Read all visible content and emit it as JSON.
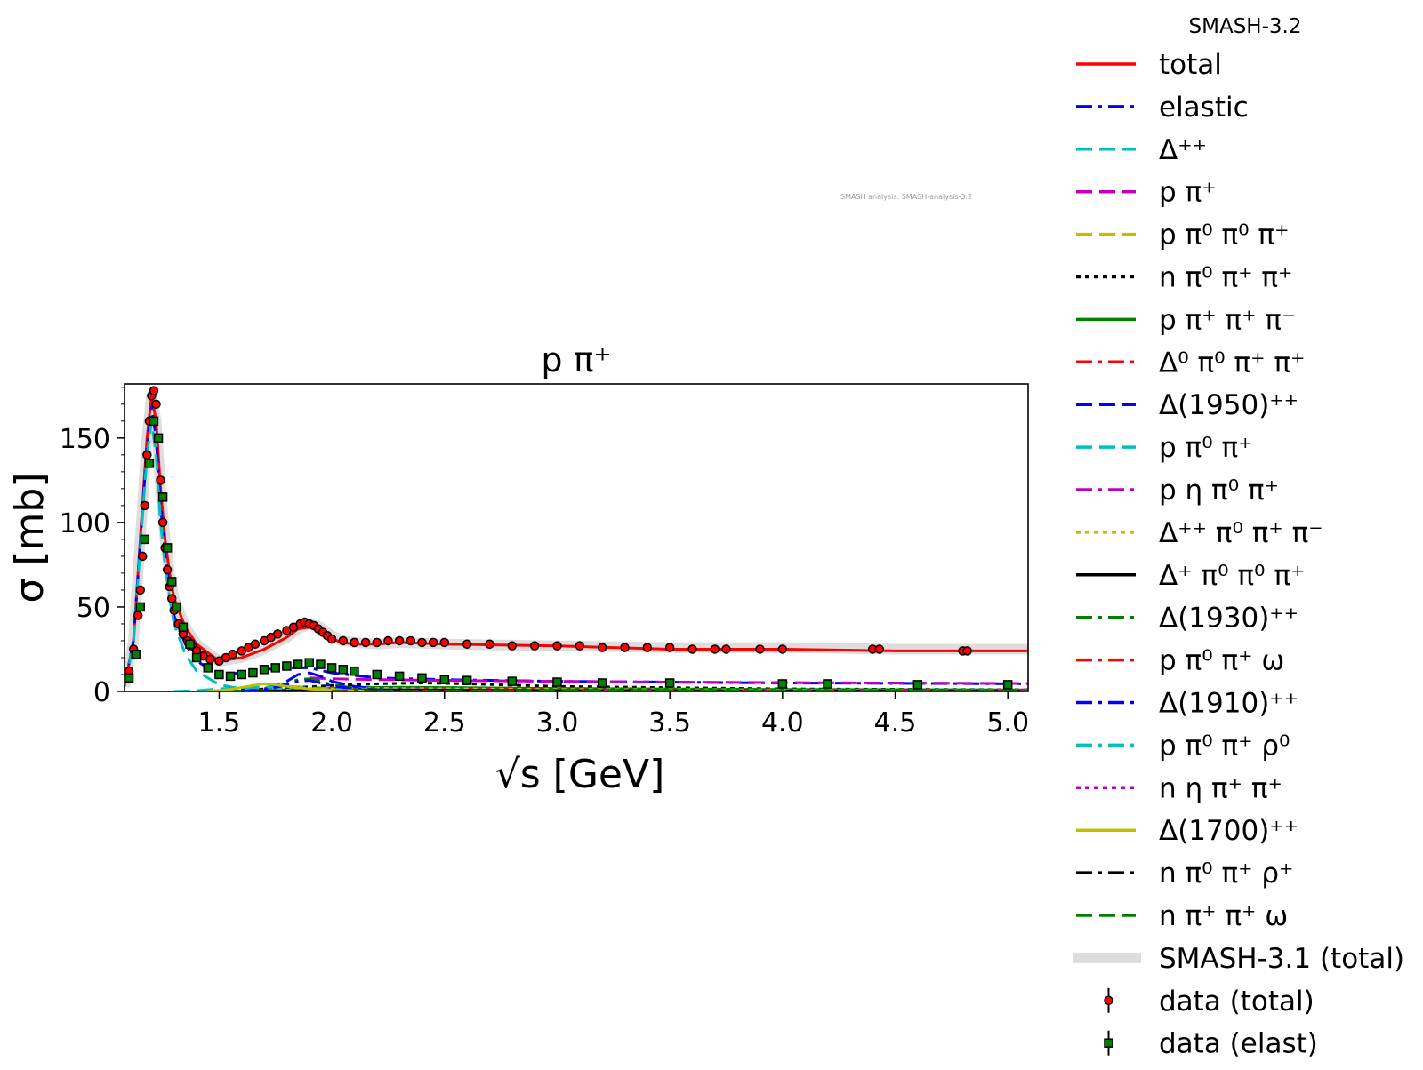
{
  "chart_data": {
    "type": "line",
    "title": "p π⁺",
    "xlabel": "√s [GeV]",
    "ylabel": "σ [mb]",
    "xlim": [
      1.08,
      5.09
    ],
    "ylim": [
      0,
      182
    ],
    "x_ticks": [
      1.5,
      2.0,
      2.5,
      3.0,
      3.5,
      4.0,
      4.5,
      5.0
    ],
    "x_tick_labels": [
      "1.5",
      "2.0",
      "2.5",
      "3.0",
      "3.5",
      "4.0",
      "4.5",
      "5.0"
    ],
    "y_ticks": [
      0,
      50,
      100,
      150
    ],
    "y_tick_labels": [
      "0",
      "50",
      "100",
      "150"
    ],
    "legend_title": "SMASH-3.2",
    "legend_placement": "outside-right",
    "watermark": "SMASH analysis: SMASH-analysis-3.2",
    "grid": false,
    "series": [
      {
        "name": "total",
        "color": "#ff0000",
        "style": "solid",
        "x": [
          1.08,
          1.12,
          1.15,
          1.18,
          1.2,
          1.22,
          1.24,
          1.26,
          1.28,
          1.3,
          1.35,
          1.4,
          1.5,
          1.6,
          1.7,
          1.8,
          1.85,
          1.9,
          1.95,
          2.0,
          2.05,
          2.1,
          2.2,
          2.3,
          2.5,
          3.0,
          3.5,
          4.0,
          4.5,
          5.09
        ],
        "y": [
          3,
          30,
          90,
          150,
          175,
          160,
          120,
          90,
          70,
          55,
          38,
          28,
          18,
          20,
          25,
          32,
          37,
          38,
          36,
          31,
          29,
          28,
          28,
          29,
          28,
          27,
          25,
          25,
          24,
          24
        ]
      },
      {
        "name": "elastic",
        "color": "#0000ff",
        "style": "dashdot",
        "x": [
          1.08,
          1.12,
          1.15,
          1.18,
          1.2,
          1.22,
          1.24,
          1.26,
          1.28,
          1.3,
          1.35,
          1.4,
          1.5,
          1.6,
          1.7,
          1.8,
          1.9,
          2.0,
          2.2,
          2.5,
          3.0,
          3.5,
          4.0,
          4.5,
          5.09
        ],
        "y": [
          3,
          30,
          88,
          145,
          168,
          150,
          110,
          82,
          60,
          45,
          28,
          18,
          10,
          11,
          13,
          14,
          14,
          11,
          8,
          7,
          6,
          5.5,
          5,
          4.8,
          4.5
        ]
      },
      {
        "name": "Δ⁺⁺",
        "color": "#00bfbf",
        "style": "dashed",
        "x": [
          1.08,
          1.12,
          1.15,
          1.18,
          1.2,
          1.22,
          1.24,
          1.26,
          1.28,
          1.3,
          1.35,
          1.4,
          1.5,
          1.6,
          1.7,
          1.8,
          1.9,
          2.0
        ],
        "y": [
          3,
          28,
          85,
          140,
          160,
          140,
          100,
          75,
          55,
          40,
          22,
          12,
          4,
          1.5,
          0.6,
          0.3,
          0.1,
          0
        ]
      },
      {
        "name": "p π⁺",
        "color": "#bf00bf",
        "style": "dashed",
        "x": [
          1.9,
          2.0,
          2.2,
          2.5,
          3.0,
          3.5,
          4.0,
          4.5,
          5.09
        ],
        "y": [
          8,
          7.5,
          7,
          6.5,
          6,
          5.5,
          5.2,
          5,
          4.7
        ]
      },
      {
        "name": "p π⁰ π⁰ π⁺",
        "color": "#bfbf00",
        "style": "dashed",
        "x": [
          1.4,
          1.5,
          1.6,
          1.7,
          1.8,
          1.9,
          2.0,
          2.2,
          2.5,
          3.0,
          4.0,
          5.09
        ],
        "y": [
          0,
          0.5,
          1.5,
          2.5,
          3,
          2.5,
          2,
          1.5,
          1.2,
          0.8,
          0.5,
          0.3
        ]
      },
      {
        "name": "n π⁰ π⁺ π⁺",
        "color": "#000000",
        "style": "dotted",
        "x": [
          1.4,
          1.6,
          1.8,
          2.0,
          2.2,
          2.4,
          2.6,
          3.0,
          4.0,
          5.09
        ],
        "y": [
          0,
          1,
          2,
          3.5,
          4.5,
          5,
          4.5,
          3,
          1.5,
          1
        ]
      },
      {
        "name": "p π⁺ π⁺ π⁻",
        "color": "#008000",
        "style": "solid",
        "x": [
          1.5,
          1.7,
          1.9,
          2.1,
          2.3,
          2.5,
          3.0,
          4.0,
          5.09
        ],
        "y": [
          0,
          0.5,
          1.5,
          2.2,
          2.5,
          2.3,
          1.8,
          1.2,
          0.9
        ]
      },
      {
        "name": "Δ⁰ π⁰ π⁺ π⁺",
        "color": "#ff0000",
        "style": "dashdot",
        "x": [
          1.6,
          1.8,
          2.0,
          2.2,
          2.5,
          3.0,
          4.0,
          5.09
        ],
        "y": [
          0,
          0.6,
          1.2,
          1.5,
          1.4,
          1.0,
          0.6,
          0.4
        ]
      },
      {
        "name": "Δ(1950)⁺⁺",
        "color": "#0000ff",
        "style": "dashed",
        "x": [
          1.6,
          1.7,
          1.8,
          1.85,
          1.9,
          1.95,
          2.0,
          2.1,
          2.2,
          2.4,
          2.6
        ],
        "y": [
          0,
          1.5,
          6,
          10,
          11,
          9,
          6,
          3,
          1.5,
          0.5,
          0
        ]
      },
      {
        "name": "p π⁰ π⁺",
        "color": "#00bfbf",
        "style": "dashed",
        "x": [
          1.3,
          1.4,
          1.5,
          1.6,
          1.7,
          1.8,
          2.0,
          2.2,
          2.5,
          3.0,
          4.0,
          5.09
        ],
        "y": [
          0,
          0.5,
          1.5,
          2.2,
          2.5,
          2.3,
          1.8,
          1.3,
          1,
          0.7,
          0.4,
          0.3
        ]
      },
      {
        "name": "p η π⁰ π⁺",
        "color": "#bf00bf",
        "style": "dashdot",
        "x": [
          1.9,
          2.1,
          2.3,
          2.5,
          3.0,
          4.0,
          5.09
        ],
        "y": [
          0,
          0.2,
          0.4,
          0.5,
          0.5,
          0.4,
          0.3
        ]
      },
      {
        "name": "Δ⁺⁺ π⁰ π⁺ π⁻",
        "color": "#bfbf00",
        "style": "dotted",
        "x": [
          1.6,
          1.8,
          2.0,
          2.2,
          2.5,
          3.0,
          4.0,
          5.09
        ],
        "y": [
          0,
          0.8,
          1.5,
          1.8,
          1.6,
          1.2,
          0.8,
          0.5
        ]
      },
      {
        "name": "Δ⁺ π⁰ π⁰ π⁺",
        "color": "#000000",
        "style": "solid",
        "x": [
          1.6,
          1.8,
          2.0,
          2.2,
          2.5,
          3.0,
          4.0,
          5.09
        ],
        "y": [
          0,
          0.3,
          0.7,
          0.9,
          0.8,
          0.6,
          0.4,
          0.3
        ]
      },
      {
        "name": "Δ(1930)⁺⁺",
        "color": "#008000",
        "style": "dashdot",
        "x": [
          1.6,
          1.7,
          1.8,
          1.85,
          1.9,
          1.95,
          2.0,
          2.1,
          2.3
        ],
        "y": [
          0,
          1.2,
          4.5,
          7,
          7.5,
          6,
          4,
          2,
          0.3
        ]
      },
      {
        "name": "p π⁰ π⁺ ω",
        "color": "#ff0000",
        "style": "dashdot",
        "x": [
          2.2,
          2.5,
          3.0,
          4.0,
          5.09
        ],
        "y": [
          0,
          0.2,
          0.4,
          0.4,
          0.3
        ]
      },
      {
        "name": "Δ(1910)⁺⁺",
        "color": "#0000ff",
        "style": "dashdot",
        "x": [
          1.6,
          1.7,
          1.8,
          1.85,
          1.9,
          1.95,
          2.0,
          2.1,
          2.3
        ],
        "y": [
          0,
          1,
          4,
          6,
          6.5,
          5,
          3.2,
          1.5,
          0.2
        ]
      },
      {
        "name": "p π⁰ π⁺ ρ⁰",
        "color": "#00bfbf",
        "style": "dashdot",
        "x": [
          2.0,
          2.3,
          2.6,
          3.0,
          4.0,
          5.09
        ],
        "y": [
          0,
          0.2,
          0.3,
          0.35,
          0.3,
          0.25
        ]
      },
      {
        "name": "n η π⁺ π⁺",
        "color": "#bf00bf",
        "style": "dotted",
        "x": [
          1.9,
          2.2,
          2.5,
          3.0,
          4.0,
          5.09
        ],
        "y": [
          0,
          0.2,
          0.3,
          0.3,
          0.25,
          0.2
        ]
      },
      {
        "name": "Δ(1700)⁺⁺",
        "color": "#bfbf00",
        "style": "solid",
        "x": [
          1.45,
          1.55,
          1.65,
          1.7,
          1.75,
          1.8,
          1.9,
          2.0,
          2.2
        ],
        "y": [
          0,
          1.2,
          3.5,
          4.5,
          4,
          3,
          1.5,
          0.8,
          0.2
        ]
      },
      {
        "name": "n π⁰ π⁺ ρ⁺",
        "color": "#000000",
        "style": "dashdot",
        "x": [
          2.0,
          2.3,
          2.6,
          3.0,
          4.0,
          5.09
        ],
        "y": [
          0,
          0.15,
          0.25,
          0.3,
          0.25,
          0.2
        ]
      },
      {
        "name": "n π⁺ π⁺ ω",
        "color": "#008000",
        "style": "dashed",
        "x": [
          2.2,
          2.5,
          3.0,
          4.0,
          5.09
        ],
        "y": [
          0,
          0.15,
          0.25,
          0.25,
          0.2
        ]
      },
      {
        "name": "SMASH-3.1 (total)",
        "color": "#dddddd",
        "style": "band",
        "x": [
          1.08,
          1.12,
          1.15,
          1.18,
          1.2,
          1.22,
          1.24,
          1.26,
          1.28,
          1.3,
          1.35,
          1.4,
          1.5,
          1.6,
          1.7,
          1.8,
          1.85,
          1.9,
          1.95,
          2.0,
          2.05,
          2.1,
          2.2,
          2.3,
          2.5,
          3.0,
          3.5,
          4.0,
          4.5,
          5.09
        ],
        "y": [
          3,
          30,
          90,
          150,
          175,
          160,
          120,
          90,
          70,
          55,
          38,
          28,
          18,
          20,
          25,
          32,
          37,
          40,
          38,
          33,
          30,
          29,
          28,
          29,
          28,
          27,
          26,
          26,
          25,
          25
        ]
      }
    ],
    "data_series": [
      {
        "name": "data (total)",
        "marker": "circle",
        "fill": "#ff0000",
        "x": [
          1.1,
          1.12,
          1.14,
          1.15,
          1.16,
          1.17,
          1.18,
          1.19,
          1.2,
          1.21,
          1.22,
          1.23,
          1.24,
          1.25,
          1.26,
          1.27,
          1.28,
          1.29,
          1.3,
          1.32,
          1.34,
          1.36,
          1.38,
          1.4,
          1.43,
          1.46,
          1.5,
          1.53,
          1.56,
          1.6,
          1.63,
          1.66,
          1.7,
          1.73,
          1.76,
          1.8,
          1.83,
          1.86,
          1.88,
          1.9,
          1.92,
          1.94,
          1.96,
          1.98,
          2.0,
          2.05,
          2.1,
          2.15,
          2.2,
          2.25,
          2.3,
          2.35,
          2.4,
          2.45,
          2.5,
          2.6,
          2.7,
          2.8,
          2.9,
          3.0,
          3.1,
          3.2,
          3.3,
          3.4,
          3.5,
          3.6,
          3.7,
          3.75,
          3.9,
          4.0,
          4.4,
          4.43,
          4.8,
          4.82
        ],
        "y": [
          12,
          25,
          45,
          60,
          80,
          110,
          140,
          160,
          175,
          178,
          170,
          150,
          125,
          100,
          85,
          72,
          62,
          55,
          48,
          40,
          34,
          30,
          27,
          24,
          21,
          19,
          18,
          20,
          22,
          24,
          26,
          28,
          30,
          32,
          34,
          36,
          38,
          40,
          41,
          40,
          39,
          37,
          35,
          33,
          31,
          30,
          29,
          29,
          29,
          30,
          30,
          30,
          29,
          29,
          29,
          28,
          28,
          27,
          27,
          27,
          27,
          26,
          26,
          26,
          26,
          25,
          25,
          25,
          25,
          25,
          25,
          25,
          24,
          24
        ]
      },
      {
        "name": "data (elast)",
        "marker": "square",
        "fill": "#008000",
        "x": [
          1.1,
          1.13,
          1.15,
          1.17,
          1.19,
          1.21,
          1.23,
          1.25,
          1.27,
          1.29,
          1.31,
          1.34,
          1.37,
          1.4,
          1.45,
          1.5,
          1.55,
          1.6,
          1.65,
          1.7,
          1.75,
          1.8,
          1.85,
          1.9,
          1.95,
          2.0,
          2.05,
          2.1,
          2.2,
          2.3,
          2.4,
          2.5,
          2.6,
          2.8,
          3.0,
          3.2,
          3.5,
          4.0,
          4.2,
          4.6,
          5.0
        ],
        "y": [
          8,
          22,
          50,
          90,
          135,
          160,
          150,
          115,
          85,
          65,
          50,
          38,
          28,
          20,
          14,
          10,
          9,
          10,
          11,
          13,
          14,
          15,
          16,
          17,
          16,
          14,
          13,
          12,
          10,
          9,
          8,
          7,
          6.5,
          6,
          5.5,
          5,
          5,
          4.5,
          4.5,
          4,
          4
        ]
      }
    ]
  }
}
